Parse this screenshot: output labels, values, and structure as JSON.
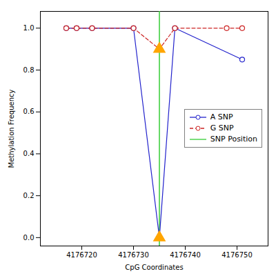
{
  "chart_data": {
    "type": "line",
    "xlabel": "CpG Coordinates",
    "ylabel": "Methylation Frequency",
    "series": [
      {
        "name": "A SNP",
        "color": "#2222cc",
        "line_style": "solid",
        "marker": "circle",
        "x": [
          4176717,
          4176719,
          4176722,
          4176730,
          4176735,
          4176738,
          4176751
        ],
        "values": [
          1.0,
          1.0,
          1.0,
          1.0,
          0.0,
          1.0,
          0.85
        ]
      },
      {
        "name": "G SNP",
        "color": "#cc2222",
        "line_style": "dashed",
        "marker": "circle",
        "x": [
          4176717,
          4176719,
          4176722,
          4176730,
          4176735,
          4176738,
          4176748,
          4176751
        ],
        "values": [
          1.0,
          1.0,
          1.0,
          1.0,
          0.9,
          1.0,
          1.0,
          1.0
        ]
      }
    ],
    "vline": {
      "name": "SNP Position",
      "x": 4176735,
      "color": "#33cc33",
      "line_style": "solid"
    },
    "points": {
      "x": [
        4176735,
        4176735
      ],
      "values": [
        0.0,
        0.9
      ],
      "color": "#ffa500",
      "marker": "triangle"
    },
    "xlim": [
      4176712,
      4176756
    ],
    "ylim": [
      -0.04,
      1.08
    ],
    "xticks": [
      4176720,
      4176730,
      4176740,
      4176750
    ],
    "yticks": [
      {
        "value": 0.0,
        "label": "0.0"
      },
      0.2,
      0.4,
      0.6,
      0.8,
      {
        "value": 1.0,
        "label": "1.0"
      }
    ],
    "grid": false,
    "legend": "right"
  }
}
